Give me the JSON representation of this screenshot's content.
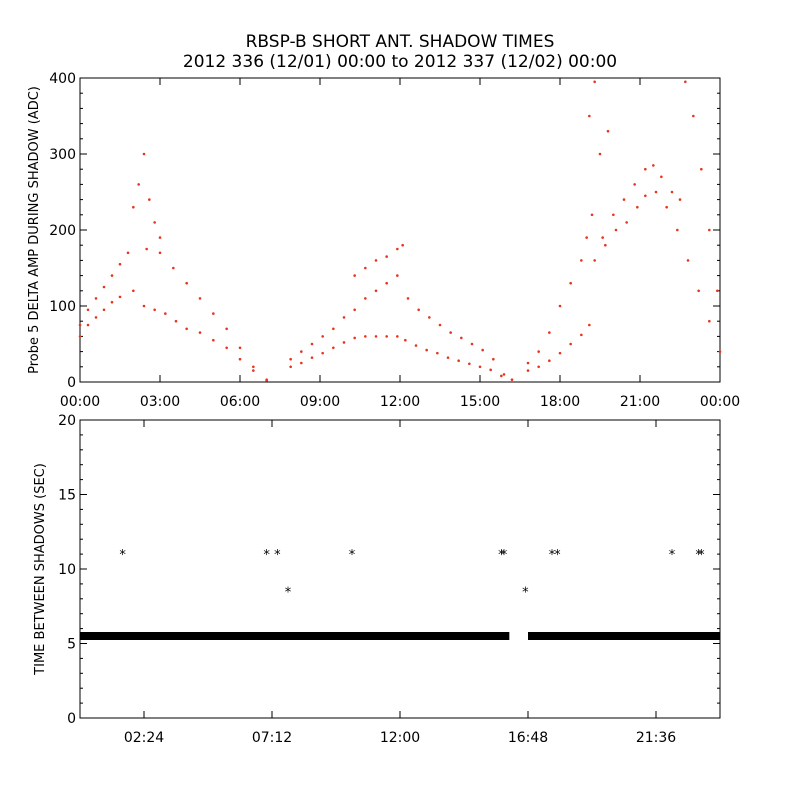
{
  "title_line1": "RBSP-B SHORT ANT. SHADOW TIMES",
  "title_line2": "2012 336 (12/01) 00:00 to 2012 337 (12/02) 00:00",
  "colors": {
    "top_series": "#e8341c",
    "bottom_series": "#000000",
    "axes": "#000000"
  },
  "chart_data": [
    {
      "type": "scatter",
      "ylabel": "Probe 5 DELTA AMP DURING SHADOW (ADC)",
      "xlabel": "",
      "x_unit": "hours since 2012-12-01 00:00",
      "xlim": [
        0,
        24
      ],
      "ylim": [
        0,
        400
      ],
      "yticks": [
        0,
        100,
        200,
        300,
        400
      ],
      "xticks": [
        {
          "value": 0,
          "label": "00:00"
        },
        {
          "value": 3,
          "label": "03:00"
        },
        {
          "value": 6,
          "label": "06:00"
        },
        {
          "value": 9,
          "label": "09:00"
        },
        {
          "value": 12,
          "label": "12:00"
        },
        {
          "value": 15,
          "label": "15:00"
        },
        {
          "value": 18,
          "label": "18:00"
        },
        {
          "value": 21,
          "label": "21:00"
        },
        {
          "value": 24,
          "label": "00:00"
        }
      ],
      "series": [
        {
          "marker": "dot",
          "points": [
            [
              0.0,
              60
            ],
            [
              0.3,
              75
            ],
            [
              0.6,
              85
            ],
            [
              0.9,
              95
            ],
            [
              1.2,
              105
            ],
            [
              1.5,
              112
            ],
            [
              0.0,
              75
            ],
            [
              0.3,
              95
            ],
            [
              0.6,
              110
            ],
            [
              0.9,
              125
            ],
            [
              1.2,
              140
            ],
            [
              1.5,
              155
            ],
            [
              1.8,
              170
            ],
            [
              2.0,
              230
            ],
            [
              2.2,
              260
            ],
            [
              2.4,
              300
            ],
            [
              2.6,
              240
            ],
            [
              2.8,
              210
            ],
            [
              3.0,
              190
            ],
            [
              2.0,
              120
            ],
            [
              2.4,
              100
            ],
            [
              2.8,
              95
            ],
            [
              3.2,
              90
            ],
            [
              3.6,
              80
            ],
            [
              4.0,
              70
            ],
            [
              4.5,
              65
            ],
            [
              5.0,
              55
            ],
            [
              5.5,
              45
            ],
            [
              6.0,
              30
            ],
            [
              6.5,
              15
            ],
            [
              7.0,
              2
            ],
            [
              2.5,
              175
            ],
            [
              3.0,
              170
            ],
            [
              3.5,
              150
            ],
            [
              4.0,
              130
            ],
            [
              4.5,
              110
            ],
            [
              5.0,
              90
            ],
            [
              5.5,
              70
            ],
            [
              6.0,
              45
            ],
            [
              6.5,
              20
            ],
            [
              7.0,
              3
            ],
            [
              7.9,
              20
            ],
            [
              8.3,
              25
            ],
            [
              8.7,
              32
            ],
            [
              9.1,
              38
            ],
            [
              9.5,
              45
            ],
            [
              9.9,
              52
            ],
            [
              10.3,
              58
            ],
            [
              10.7,
              60
            ],
            [
              11.1,
              60
            ],
            [
              11.5,
              60
            ],
            [
              11.9,
              60
            ],
            [
              12.2,
              55
            ],
            [
              12.6,
              48
            ],
            [
              13.0,
              42
            ],
            [
              13.4,
              38
            ],
            [
              13.8,
              32
            ],
            [
              14.2,
              28
            ],
            [
              14.6,
              24
            ],
            [
              15.0,
              20
            ],
            [
              15.4,
              16
            ],
            [
              15.8,
              8
            ],
            [
              16.2,
              3
            ],
            [
              7.9,
              30
            ],
            [
              8.3,
              40
            ],
            [
              8.7,
              50
            ],
            [
              9.1,
              60
            ],
            [
              9.5,
              70
            ],
            [
              9.9,
              85
            ],
            [
              10.3,
              95
            ],
            [
              10.7,
              110
            ],
            [
              11.1,
              120
            ],
            [
              11.5,
              130
            ],
            [
              11.9,
              140
            ],
            [
              12.3,
              110
            ],
            [
              12.7,
              95
            ],
            [
              13.1,
              85
            ],
            [
              13.5,
              75
            ],
            [
              13.9,
              65
            ],
            [
              14.3,
              58
            ],
            [
              14.7,
              50
            ],
            [
              15.1,
              42
            ],
            [
              15.5,
              30
            ],
            [
              15.9,
              10
            ],
            [
              10.3,
              140
            ],
            [
              10.7,
              150
            ],
            [
              11.1,
              160
            ],
            [
              11.5,
              165
            ],
            [
              11.9,
              175
            ],
            [
              12.1,
              180
            ],
            [
              16.8,
              15
            ],
            [
              17.2,
              20
            ],
            [
              17.6,
              28
            ],
            [
              18.0,
              38
            ],
            [
              18.4,
              50
            ],
            [
              18.8,
              62
            ],
            [
              19.1,
              75
            ],
            [
              16.8,
              25
            ],
            [
              17.2,
              40
            ],
            [
              17.6,
              65
            ],
            [
              18.0,
              100
            ],
            [
              18.4,
              130
            ],
            [
              18.8,
              160
            ],
            [
              19.0,
              190
            ],
            [
              19.2,
              220
            ],
            [
              19.5,
              300
            ],
            [
              19.8,
              330
            ],
            [
              19.3,
              160
            ],
            [
              19.7,
              180
            ],
            [
              20.1,
              200
            ],
            [
              20.5,
              210
            ],
            [
              20.9,
              230
            ],
            [
              21.2,
              245
            ],
            [
              21.6,
              250
            ],
            [
              22.0,
              230
            ],
            [
              22.4,
              200
            ],
            [
              22.8,
              160
            ],
            [
              23.2,
              120
            ],
            [
              23.6,
              80
            ],
            [
              24.0,
              40
            ],
            [
              19.6,
              190
            ],
            [
              20.0,
              220
            ],
            [
              20.4,
              240
            ],
            [
              20.8,
              260
            ],
            [
              21.2,
              280
            ],
            [
              21.5,
              285
            ],
            [
              21.8,
              270
            ],
            [
              22.2,
              250
            ],
            [
              22.5,
              240
            ],
            [
              22.7,
              395
            ],
            [
              23.0,
              350
            ],
            [
              23.3,
              280
            ],
            [
              23.6,
              200
            ],
            [
              23.9,
              120
            ],
            [
              19.1,
              350
            ],
            [
              19.3,
              395
            ]
          ]
        }
      ]
    },
    {
      "type": "scatter",
      "ylabel": "TIME BETWEEN SHADOWS (SEC)",
      "xlabel": "",
      "x_unit": "hours since 2012-12-01 00:00",
      "xlim": [
        0,
        24
      ],
      "ylim": [
        0,
        20
      ],
      "yticks": [
        0,
        5,
        10,
        15,
        20
      ],
      "xticks": [
        {
          "value": 2.4,
          "label": "02:24"
        },
        {
          "value": 7.2,
          "label": "07:12"
        },
        {
          "value": 12.0,
          "label": "12:00"
        },
        {
          "value": 16.8,
          "label": "16:48"
        },
        {
          "value": 21.6,
          "label": "21:36"
        }
      ],
      "series": [
        {
          "marker": "asterisk",
          "baseline_segments": [
            {
              "y": 5.5,
              "x_start": 0.0,
              "x_end": 16.1
            },
            {
              "y": 5.5,
              "x_start": 16.8,
              "x_end": 24.0
            }
          ],
          "points": [
            [
              1.6,
              11.0
            ],
            [
              7.0,
              11.0
            ],
            [
              7.4,
              11.0
            ],
            [
              7.8,
              8.5
            ],
            [
              10.2,
              11.0
            ],
            [
              15.8,
              11.0
            ],
            [
              15.9,
              11.0
            ],
            [
              17.7,
              11.0
            ],
            [
              17.9,
              11.0
            ],
            [
              16.7,
              8.5
            ],
            [
              22.2,
              11.0
            ],
            [
              23.2,
              11.0
            ],
            [
              23.3,
              11.0
            ]
          ]
        }
      ]
    }
  ]
}
